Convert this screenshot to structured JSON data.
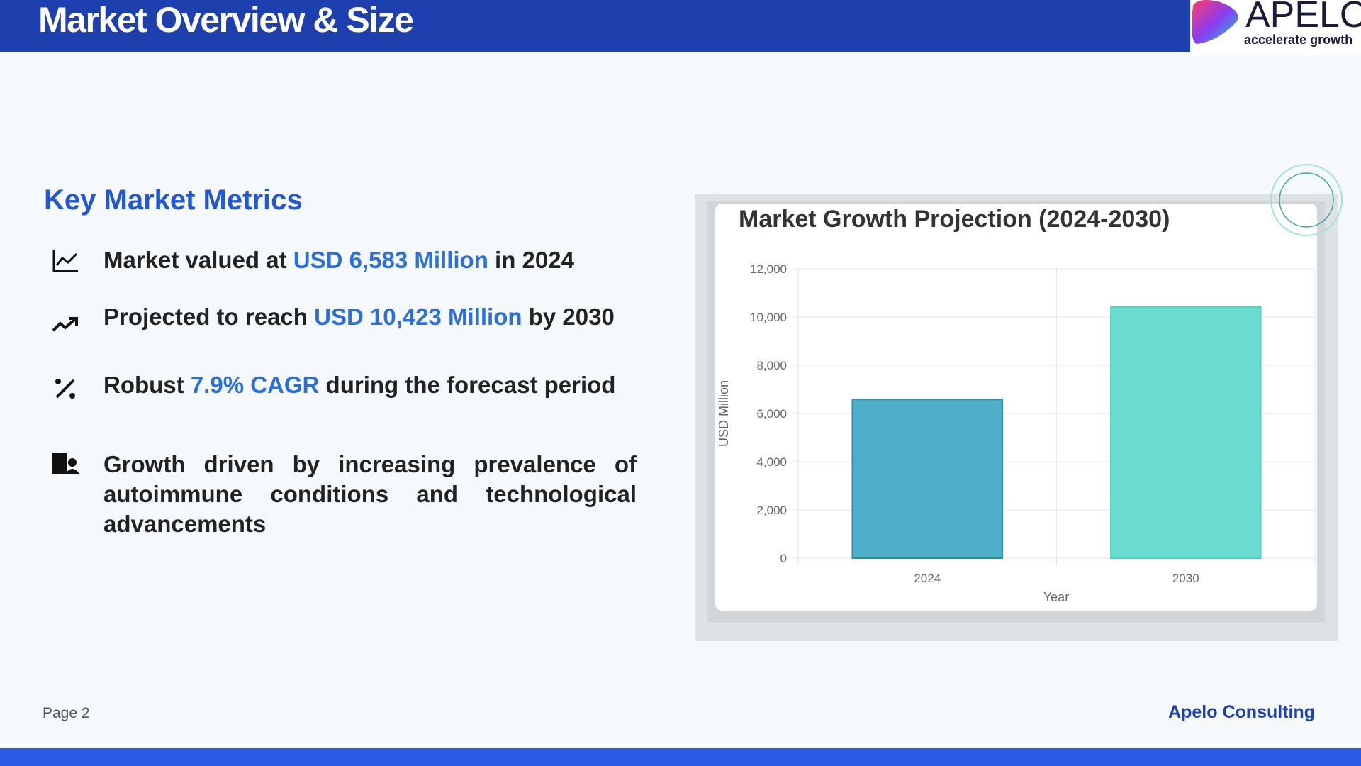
{
  "header": {
    "title": "Market Overview & Size"
  },
  "logo": {
    "name": "APELO",
    "tagline": "accelerate growth"
  },
  "section_title": "Key Market Metrics",
  "metrics": [
    {
      "segments": [
        {
          "text": "Market valued at "
        },
        {
          "text": "USD 6,583 Million",
          "highlight": true
        },
        {
          "text": " in 2024"
        }
      ]
    },
    {
      "segments": [
        {
          "text": "Projected to reach "
        },
        {
          "text": "USD 10,423 Million",
          "highlight": true
        },
        {
          "text": " by 2030"
        }
      ]
    },
    {
      "segments": [
        {
          "text": "Robust "
        },
        {
          "text": "7.9% CAGR",
          "highlight": true
        },
        {
          "text": " during the forecast period"
        }
      ]
    },
    {
      "segments": [
        {
          "text": "Growth driven by increasing prevalence of autoimmune conditions and technological advancements"
        }
      ]
    }
  ],
  "chart_data": {
    "type": "bar",
    "title": "Market Growth Projection (2024-2030)",
    "categories": [
      "2024",
      "2030"
    ],
    "values": [
      6583,
      10423
    ],
    "colors": [
      "#4fafc9",
      "#6adccf"
    ],
    "border_colors": [
      "#2b8aa6",
      "#4fcfbf"
    ],
    "xlabel": "Year",
    "ylabel": "USD Million",
    "ylim": [
      0,
      12000
    ],
    "yticks": [
      0,
      {
        "value": 2000,
        "label": "2,000"
      },
      {
        "value": 4000,
        "label": "4,000"
      },
      {
        "value": 6000,
        "label": "6,000"
      },
      {
        "value": 8000,
        "label": "8,000"
      },
      {
        "value": 10000,
        "label": "10,000"
      },
      {
        "value": 12000,
        "label": "12,000"
      }
    ],
    "grid": true
  },
  "footer": {
    "page": "Page 2",
    "brand": "Apelo Consulting"
  }
}
